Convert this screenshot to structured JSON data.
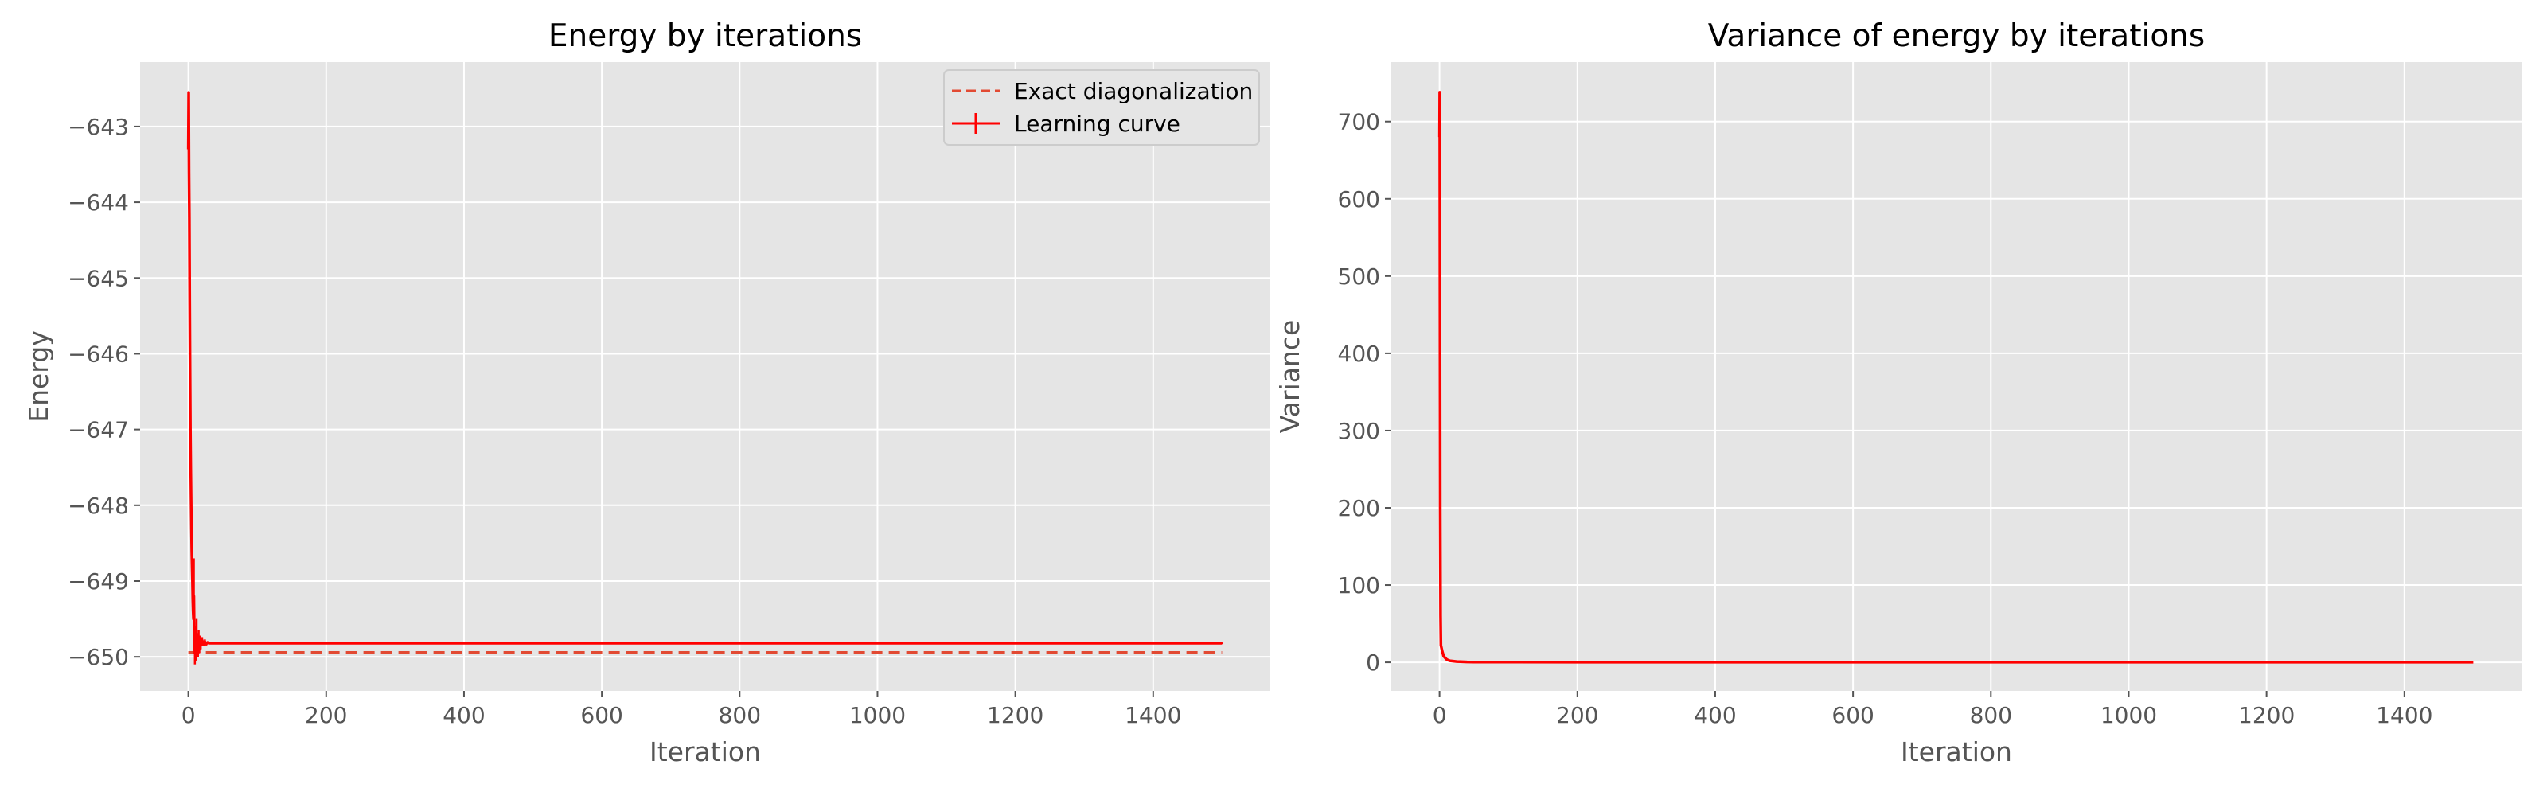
{
  "chart_data": [
    {
      "type": "line",
      "title": "Energy by iterations",
      "xlabel": "Iteration",
      "ylabel": "Energy",
      "xlim": [
        -70,
        1570
      ],
      "ylim": [
        -650.45,
        -642.15
      ],
      "xticks": [
        0,
        200,
        400,
        600,
        800,
        1000,
        1200,
        1400
      ],
      "xtick_labels": [
        "0",
        "200",
        "400",
        "600",
        "800",
        "1000",
        "1200",
        "1400"
      ],
      "yticks": [
        -650,
        -649,
        -648,
        -647,
        -646,
        -645,
        -644,
        -643
      ],
      "ytick_labels": [
        "−650",
        "−649",
        "−648",
        "−647",
        "−646",
        "−645",
        "−644",
        "−643"
      ],
      "grid": true,
      "legend": {
        "placement": "top-right",
        "entries": [
          "Exact diagonalization",
          "Learning curve"
        ]
      },
      "series": [
        {
          "name": "Exact diagonalization",
          "style": "dashed",
          "color": "#e24a33",
          "x": [
            0,
            1500
          ],
          "y": [
            -649.94,
            -649.94
          ]
        },
        {
          "name": "Learning curve",
          "style": "solid-errorbar",
          "color": "#ff0000",
          "x": [
            0,
            0.5,
            1,
            1.5,
            2,
            2.5,
            3,
            3.5,
            4,
            4.5,
            5,
            5.5,
            6,
            6.5,
            7,
            7.5,
            8,
            8.5,
            9,
            9.5,
            10,
            10.5,
            11,
            12,
            13,
            14,
            15,
            16,
            17,
            18,
            19,
            20,
            22,
            24,
            26,
            28,
            30,
            35,
            40,
            50,
            100,
            200,
            300,
            400,
            500,
            600,
            700,
            800,
            900,
            1000,
            1100,
            1200,
            1300,
            1400,
            1500
          ],
          "y": [
            -643.3,
            -642.55,
            -643.6,
            -644.2,
            -645.3,
            -646.2,
            -647.0,
            -647.5,
            -647.9,
            -648.3,
            -648.6,
            -648.8,
            -649.0,
            -649.25,
            -649.4,
            -649.5,
            -649.2,
            -649.6,
            -649.7,
            -649.95,
            -649.75,
            -649.85,
            -649.9,
            -649.7,
            -649.8,
            -649.95,
            -649.75,
            -649.9,
            -649.8,
            -649.85,
            -649.82,
            -649.78,
            -649.84,
            -649.8,
            -649.83,
            -649.81,
            -649.82,
            -649.82,
            -649.82,
            -649.82,
            -649.82,
            -649.82,
            -649.82,
            -649.82,
            -649.82,
            -649.82,
            -649.82,
            -649.82,
            -649.82,
            -649.82,
            -649.82,
            -649.82,
            -649.82,
            -649.82,
            -649.82
          ],
          "yerr_low": [
            -643.3,
            -642.55,
            -643.6,
            -644.2,
            -645.3,
            -646.2,
            -647.0,
            -647.5,
            -647.9,
            -648.3,
            -648.6,
            -648.8,
            -649.0,
            -649.25,
            -649.4,
            -649.5,
            -649.2,
            -649.7,
            -649.85,
            -650.1,
            -649.95,
            -650.0,
            -650.05,
            -649.9,
            -649.9,
            -650.0,
            -649.85,
            -649.95,
            -649.88,
            -649.9,
            -649.86,
            -649.83,
            -649.86,
            -649.83,
            -649.85,
            -649.83,
            -649.83,
            -649.83,
            -649.83,
            -649.83,
            -649.83,
            -649.83,
            -649.83,
            -649.83,
            -649.83,
            -649.83,
            -649.83,
            -649.83,
            -649.83,
            -649.83,
            -649.83,
            -649.83,
            -649.83,
            -649.83,
            -649.83
          ],
          "yerr_high": [
            -643.3,
            -642.55,
            -643.6,
            -644.2,
            -645.3,
            -646.2,
            -647.0,
            -647.5,
            -647.9,
            -648.3,
            -648.6,
            -648.8,
            -648.9,
            -649.1,
            -649.3,
            -649.4,
            -648.7,
            -649.4,
            -649.55,
            -649.8,
            -649.6,
            -649.7,
            -649.75,
            -649.5,
            -649.7,
            -649.85,
            -649.65,
            -649.8,
            -649.72,
            -649.8,
            -649.78,
            -649.74,
            -649.81,
            -649.77,
            -649.81,
            -649.8,
            -649.81,
            -649.81,
            -649.81,
            -649.81,
            -649.81,
            -649.81,
            -649.81,
            -649.81,
            -649.81,
            -649.81,
            -649.81,
            -649.81,
            -649.81,
            -649.81,
            -649.81,
            -649.81,
            -649.81,
            -649.81,
            -649.81
          ]
        }
      ]
    },
    {
      "type": "line",
      "title": "Variance of energy by iterations",
      "xlabel": "Iteration",
      "ylabel": "Variance",
      "xlim": [
        -70,
        1570
      ],
      "ylim": [
        -37,
        777
      ],
      "xticks": [
        0,
        200,
        400,
        600,
        800,
        1000,
        1200,
        1400
      ],
      "xtick_labels": [
        "0",
        "200",
        "400",
        "600",
        "800",
        "1000",
        "1200",
        "1400"
      ],
      "yticks": [
        0,
        100,
        200,
        300,
        400,
        500,
        600,
        700
      ],
      "ytick_labels": [
        "0",
        "100",
        "200",
        "300",
        "400",
        "500",
        "600",
        "700"
      ],
      "grid": true,
      "series": [
        {
          "style": "solid",
          "color": "#ff0000",
          "x": [
            0,
            0.3,
            0.6,
            1,
            1.5,
            2,
            3,
            4,
            5,
            6,
            8,
            10,
            12,
            15,
            20,
            25,
            30,
            40,
            50,
            100,
            200,
            400,
            600,
            800,
            1000,
            1200,
            1400,
            1500
          ],
          "y": [
            680,
            738,
            500,
            200,
            60,
            22,
            18,
            14,
            11,
            8,
            6,
            4,
            3,
            2,
            1.5,
            1,
            0.8,
            0.5,
            0.4,
            0.3,
            0.2,
            0.2,
            0.2,
            0.2,
            0.2,
            0.2,
            0.2,
            0.2
          ]
        }
      ]
    }
  ]
}
